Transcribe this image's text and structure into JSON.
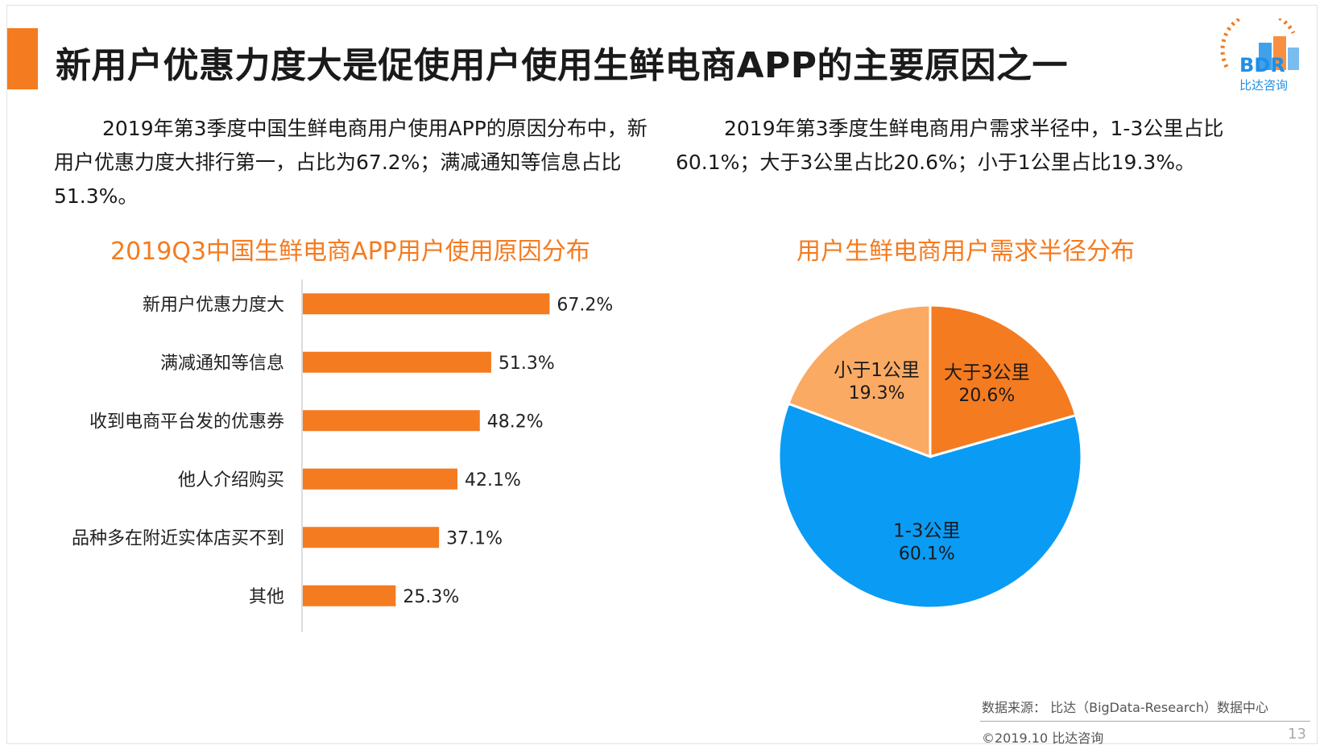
{
  "title": "新用户优惠力度大是促使用户使用生鲜电商APP的主要原因之一",
  "logo": {
    "mark": "BDR",
    "name": "比达咨询",
    "colors": {
      "orange": "#f47b20",
      "blue": "#1f8fe6"
    }
  },
  "description_left": "2019年第3季度中国生鲜电商用户使用APP的原因分布中，新用户优惠力度大排行第一，占比为67.2%；满减通知等信息占比51.3%。",
  "description_right": "2019年第3季度生鲜电商用户需求半径中，1-3公里占比60.1%；大于3公里占比20.6%；小于1公里占比19.3%。",
  "chart_data": [
    {
      "type": "bar",
      "orientation": "horizontal",
      "title": "2019Q3中国生鲜电商APP用户使用原因分布",
      "categories": [
        "新用户优惠力度大",
        "满减通知等信息",
        "收到电商平台发的优惠券",
        "他人介绍购买",
        "品种多在附近实体店买不到",
        "其他"
      ],
      "values": [
        67.2,
        51.3,
        48.2,
        42.1,
        37.1,
        25.3
      ],
      "value_labels": [
        "67.2%",
        "51.3%",
        "48.2%",
        "42.1%",
        "37.1%",
        "25.3%"
      ],
      "unit": "%",
      "xlim": [
        0,
        100
      ],
      "color": "#f47b20",
      "grid": false
    },
    {
      "type": "pie",
      "title": "用户生鲜电商用户需求半径分布",
      "slices": [
        {
          "label": "大于3公里",
          "value": 20.6,
          "value_label": "20.6%",
          "color": "#f47b20"
        },
        {
          "label": "1-3公里",
          "value": 60.1,
          "value_label": "60.1%",
          "color": "#0a9bf5"
        },
        {
          "label": "小于1公里",
          "value": 19.3,
          "value_label": "19.3%",
          "color": "#fbaa63"
        }
      ]
    }
  ],
  "footer": {
    "source": "数据来源： 比达（BigData-Research）数据中心",
    "copyright": "©2019.10  比达咨询",
    "page": "13"
  }
}
